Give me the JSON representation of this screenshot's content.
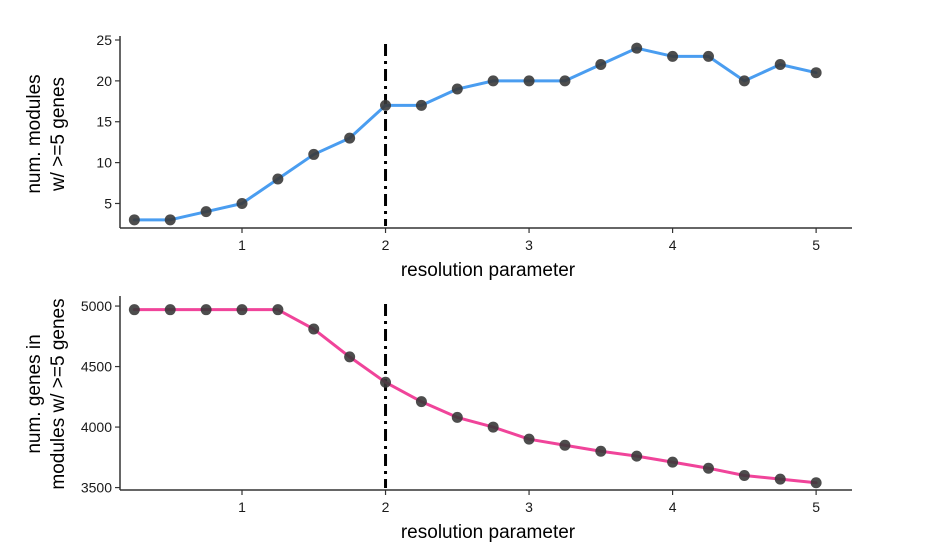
{
  "chart_data": [
    {
      "type": "line",
      "xlabel": "resolution parameter",
      "ylabel_lines": [
        "num. modules",
        "w/ >=5 genes"
      ],
      "x": [
        0.25,
        0.5,
        0.75,
        1.0,
        1.25,
        1.5,
        1.75,
        2.0,
        2.25,
        2.5,
        2.75,
        3.0,
        3.25,
        3.5,
        3.75,
        4.0,
        4.25,
        4.5,
        4.75,
        5.0
      ],
      "series": [
        {
          "values": [
            3,
            3,
            4,
            5,
            8,
            11,
            13,
            17,
            17,
            19,
            20,
            20,
            20,
            22,
            24,
            23,
            23,
            20,
            22,
            21
          ],
          "color": "#4a9df0"
        }
      ],
      "x_ticks": [
        1,
        2,
        3,
        4,
        5
      ],
      "y_ticks": [
        5,
        10,
        15,
        20,
        25
      ],
      "xlim": [
        0.15,
        5.25
      ],
      "ylim": [
        2,
        25
      ],
      "vline_x": 2,
      "grid": false,
      "point_color": "#3a3a3a"
    },
    {
      "type": "line",
      "xlabel": "resolution parameter",
      "ylabel_lines": [
        "num. genes in",
        "modules w/ >=5 genes"
      ],
      "x": [
        0.25,
        0.5,
        0.75,
        1.0,
        1.25,
        1.5,
        1.75,
        2.0,
        2.25,
        2.5,
        2.75,
        3.0,
        3.25,
        3.5,
        3.75,
        4.0,
        4.25,
        4.5,
        4.75,
        5.0
      ],
      "series": [
        {
          "values": [
            4970,
            4970,
            4970,
            4970,
            4970,
            4810,
            4580,
            4370,
            4210,
            4080,
            4000,
            3900,
            3850,
            3800,
            3760,
            3710,
            3660,
            3600,
            3570,
            3540
          ],
          "color": "#f0449a"
        }
      ],
      "x_ticks": [
        1,
        2,
        3,
        4,
        5
      ],
      "y_ticks": [
        3500,
        4000,
        4500,
        5000
      ],
      "xlim": [
        0.15,
        5.25
      ],
      "ylim": [
        3480,
        5050
      ],
      "vline_x": 2,
      "grid": false,
      "point_color": "#3a3a3a"
    }
  ]
}
